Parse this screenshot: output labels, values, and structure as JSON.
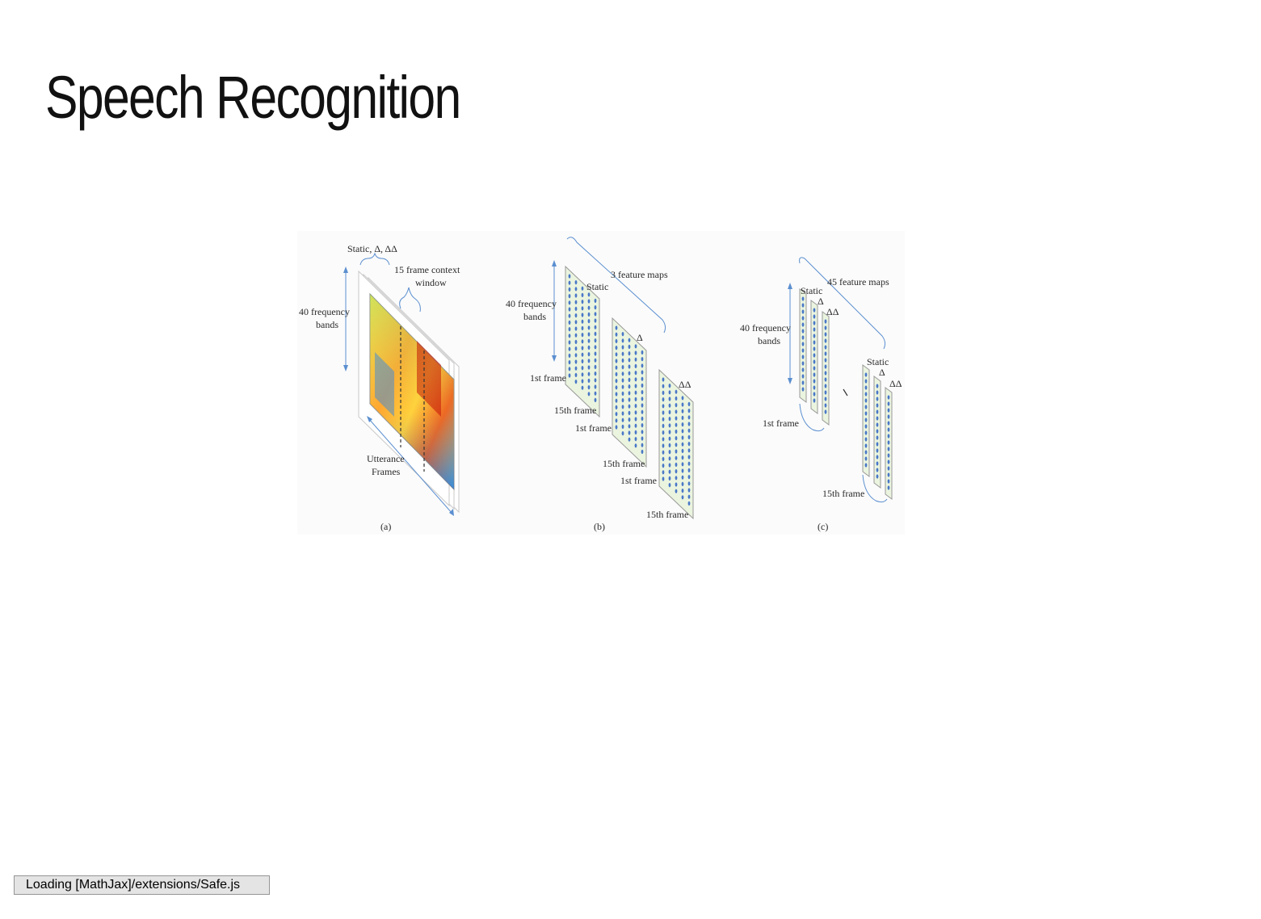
{
  "slide": {
    "title": "Speech Recognition"
  },
  "figure": {
    "panel_a": {
      "label_static_delta": "Static, Δ, ΔΔ",
      "label_context_line1": "15 frame context",
      "label_context_line2": "window",
      "label_freq_line1": "40 frequency",
      "label_freq_line2": "bands",
      "label_utt_line1": "Utterance",
      "label_utt_line2": "Frames",
      "caption": "(a)"
    },
    "panel_b": {
      "label_maps": "3 feature maps",
      "label_static": "Static",
      "label_delta": "Δ",
      "label_deltadelta": "ΔΔ",
      "label_freq_line1": "40 frequency",
      "label_freq_line2": "bands",
      "label_first_frame": "1st frame",
      "label_fifteenth_frame": "15th frame",
      "caption": "(b)"
    },
    "panel_c": {
      "label_maps": "45 feature maps",
      "label_static": "Static",
      "label_delta": "Δ",
      "label_deltadelta": "ΔΔ",
      "label_freq_line1": "40 frequency",
      "label_freq_line2": "bands",
      "label_first_frame": "1st frame",
      "label_fifteenth_frame": "15th frame",
      "caption": "(c)"
    },
    "colors": {
      "map_fill": "#eaf4df",
      "dot": "#4a78c8",
      "arrow": "#5b8fd0"
    }
  },
  "status": {
    "text": "Loading [MathJax]/extensions/Safe.js"
  }
}
